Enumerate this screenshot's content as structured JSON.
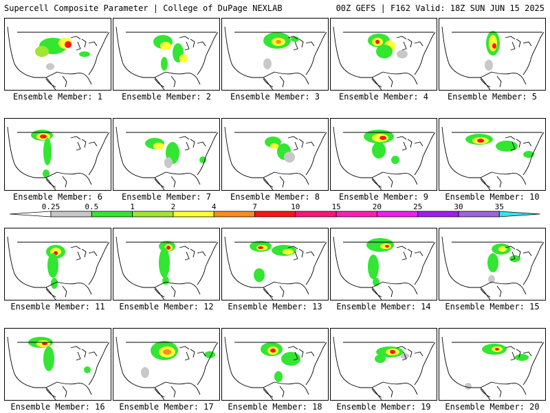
{
  "header": {
    "left_title": "Supercell Composite Parameter | College of DuPage NEXLAB",
    "right_title": "00Z GEFS | F162 Valid: 18Z SUN JUN 15 2025"
  },
  "member_label": "Ensemble Member:",
  "members": [
    {
      "number": 1
    },
    {
      "number": 2
    },
    {
      "number": 3
    },
    {
      "number": 4
    },
    {
      "number": 5
    },
    {
      "number": 6
    },
    {
      "number": 7
    },
    {
      "number": 8
    },
    {
      "number": 9
    },
    {
      "number": 10
    },
    {
      "number": 11
    },
    {
      "number": 12
    },
    {
      "number": 13
    },
    {
      "number": 14
    },
    {
      "number": 15
    },
    {
      "number": 16
    },
    {
      "number": 17
    },
    {
      "number": 18
    },
    {
      "number": 19
    },
    {
      "number": 20
    }
  ],
  "colorbar": {
    "ticks": [
      "0.25",
      "0.5",
      "1",
      "2",
      "4",
      "7",
      "10",
      "15",
      "20",
      "25",
      "30",
      "35"
    ],
    "colors": [
      "#c8c8c8",
      "#32e632",
      "#a0e632",
      "#ffff32",
      "#ff8c1e",
      "#ff1414",
      "#ff1478",
      "#ff1eb4",
      "#f01ef0",
      "#a01ef0",
      "#a064dc",
      "#32e6f0"
    ]
  }
}
